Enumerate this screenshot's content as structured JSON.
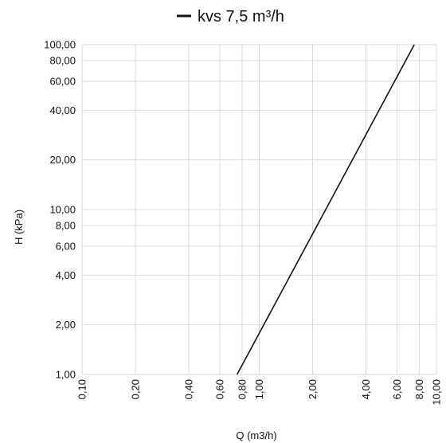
{
  "chart_data": {
    "type": "line",
    "title": "",
    "xlabel": "Q (m3/h)",
    "ylabel": "H (kPa)",
    "x_scale": "log",
    "y_scale": "log",
    "xlim": [
      0.1,
      10
    ],
    "ylim": [
      1,
      100
    ],
    "grid": true,
    "legend_position": "top-center",
    "x_ticks": [
      0.1,
      0.2,
      0.4,
      0.6,
      0.8,
      1,
      2,
      4,
      6,
      8,
      10
    ],
    "x_tick_labels": [
      "0,10",
      "0,20",
      "0,40",
      "0,60",
      "0,80",
      "1,00",
      "2,00",
      "4,00",
      "6,00",
      "8,00",
      "10,00"
    ],
    "y_ticks": [
      1,
      2,
      4,
      6,
      8,
      10,
      20,
      40,
      60,
      80,
      100
    ],
    "y_tick_labels": [
      "1,00",
      "2,00",
      "4,00",
      "6,00",
      "8,00",
      "10,00",
      "20,00",
      "40,00",
      "60,00",
      "80,00",
      "100,00"
    ],
    "series": [
      {
        "name": "kvs 7,5 m³/h",
        "color": "#111111",
        "x": [
          0.75,
          7.5
        ],
        "y": [
          1,
          100
        ]
      }
    ]
  }
}
